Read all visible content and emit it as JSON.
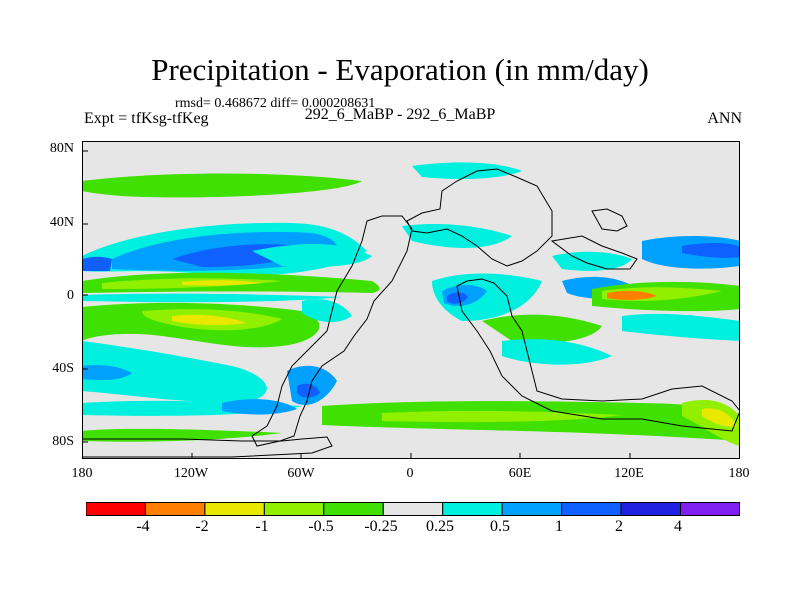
{
  "title": "Precipitation - Evaporation (in mm/day)",
  "stats": "rmsd= 0.468672 diff= 0.000208631",
  "left_label": "Expt = tfKsg-tfKeg",
  "center_label": "292_6_MaBP - 292_6_MaBP",
  "right_label": "ANN",
  "y_ticks": [
    "80N",
    "40N",
    "0",
    "40S",
    "80S"
  ],
  "x_ticks": [
    "180",
    "120W",
    "60W",
    "0",
    "60E",
    "120E",
    "180"
  ],
  "colorbar": {
    "colors": [
      "#ff0000",
      "#ff8000",
      "#e8e800",
      "#90f000",
      "#40e000",
      "#e6e6e6",
      "#00f0e0",
      "#00a0ff",
      "#1060ff",
      "#2020e0",
      "#8020f0"
    ],
    "labels": [
      "-4",
      "-2",
      "-1",
      "-0.5",
      "-0.25",
      "0.25",
      "0.5",
      "1",
      "2",
      "4"
    ]
  },
  "chart_data": {
    "type": "heatmap",
    "title": "Precipitation - Evaporation (in mm/day)",
    "x_range": [
      -180,
      180
    ],
    "y_range": [
      -90,
      90
    ],
    "x_ticks": [
      -180,
      -120,
      -60,
      0,
      60,
      120,
      180
    ],
    "y_ticks": [
      80,
      40,
      0,
      -40,
      -80
    ],
    "levels": [
      -4,
      -2,
      -1,
      -0.5,
      -0.25,
      0.25,
      0.5,
      1,
      2,
      4
    ],
    "features": [
      {
        "name": "equatorial-green-band-west",
        "lon": [
          -180,
          -50
        ],
        "lat": [
          0,
          10
        ],
        "value": -0.4
      },
      {
        "name": "equatorial-yellow-west",
        "lon": [
          -140,
          -100
        ],
        "lat": [
          2,
          8
        ],
        "value": -0.8
      },
      {
        "name": "north-pacific-blue-band",
        "lon": [
          -180,
          -60
        ],
        "lat": [
          15,
          35
        ],
        "value": 0.7
      },
      {
        "name": "north-pacific-core",
        "lon": [
          -140,
          -100
        ],
        "lat": [
          18,
          28
        ],
        "value": 1.5
      },
      {
        "name": "south-pacific-green-band",
        "lon": [
          -180,
          -60
        ],
        "lat": [
          -25,
          -10
        ],
        "value": -0.4
      },
      {
        "name": "south-pacific-yellow",
        "lon": [
          -120,
          -100
        ],
        "lat": [
          -20,
          -15
        ],
        "value": -0.8
      },
      {
        "name": "east-asia-blue",
        "lon": [
          110,
          180
        ],
        "lat": [
          15,
          35
        ],
        "value": 0.6
      },
      {
        "name": "equatorial-indian-blue",
        "lon": [
          20,
          60
        ],
        "lat": [
          -20,
          10
        ],
        "value": 0.7
      },
      {
        "name": "west-pacific-green",
        "lon": [
          100,
          180
        ],
        "lat": [
          0,
          10
        ],
        "value": -0.5
      },
      {
        "name": "west-pacific-orange",
        "lon": [
          120,
          130
        ],
        "lat": [
          0,
          5
        ],
        "value": -2.5
      },
      {
        "name": "southern-ocean-green",
        "lon": [
          -60,
          180
        ],
        "lat": [
          -75,
          -55
        ],
        "value": -0.4
      },
      {
        "name": "southern-ocean-cyan",
        "lon": [
          -180,
          -60
        ],
        "lat": [
          -65,
          -45
        ],
        "value": 0.3
      },
      {
        "name": "southern-ocean-yellow-east",
        "lon": [
          155,
          175
        ],
        "lat": [
          -85,
          -65
        ],
        "value": -1.5
      },
      {
        "name": "south-america-blue",
        "lon": [
          -75,
          -50
        ],
        "lat": [
          -65,
          -40
        ],
        "value": 0.7
      }
    ]
  }
}
